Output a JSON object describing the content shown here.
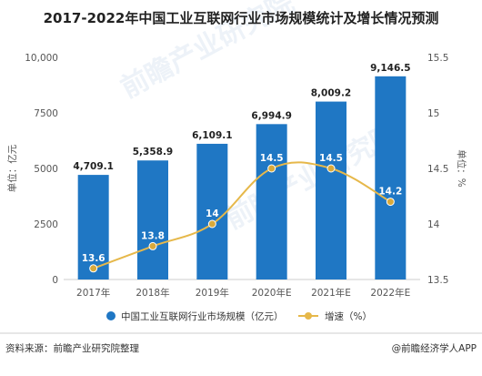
{
  "chart_data": {
    "type": "bar",
    "title": "2017-2022年中国工业互联网行业市场规模统计及增长情况预测",
    "categories": [
      "2017年",
      "2018年",
      "2019年",
      "2020年E",
      "2021年E",
      "2022年E"
    ],
    "y_left": {
      "label": "单位：亿元",
      "min": 0,
      "max": 10000,
      "ticks": [
        "0",
        "2500",
        "5000",
        "7500",
        "10,000"
      ]
    },
    "y_right": {
      "label": "单位：%",
      "min": 13.5,
      "max": 15.5,
      "ticks": [
        "13.5",
        "14",
        "14.5",
        "15",
        "15.5"
      ]
    },
    "series": [
      {
        "name": "中国工业互联网行业市场规模（亿元）",
        "type": "bar",
        "color": "#1f77c4",
        "values": [
          4709.1,
          5358.9,
          6109.1,
          6994.9,
          8009.2,
          9146.5
        ],
        "labels": [
          "4,709.1",
          "5,358.9",
          "6,109.1",
          "6,994.9",
          "8,009.2",
          "9,146.5"
        ]
      },
      {
        "name": "增速（%）",
        "type": "line",
        "color": "#e6b84a",
        "values": [
          13.6,
          13.8,
          14,
          14.5,
          14.5,
          14.2
        ],
        "labels": [
          "13.6",
          "13.8",
          "14",
          "14.5",
          "14.5",
          "14.2"
        ]
      }
    ],
    "legend": "bottom",
    "grid": false
  },
  "footer": {
    "source": "资料来源：前瞻产业研究院整理",
    "credit": "@前瞻经济学人APP"
  },
  "watermarks": [
    "前瞻产业研究院",
    "前瞻产业研究院"
  ]
}
